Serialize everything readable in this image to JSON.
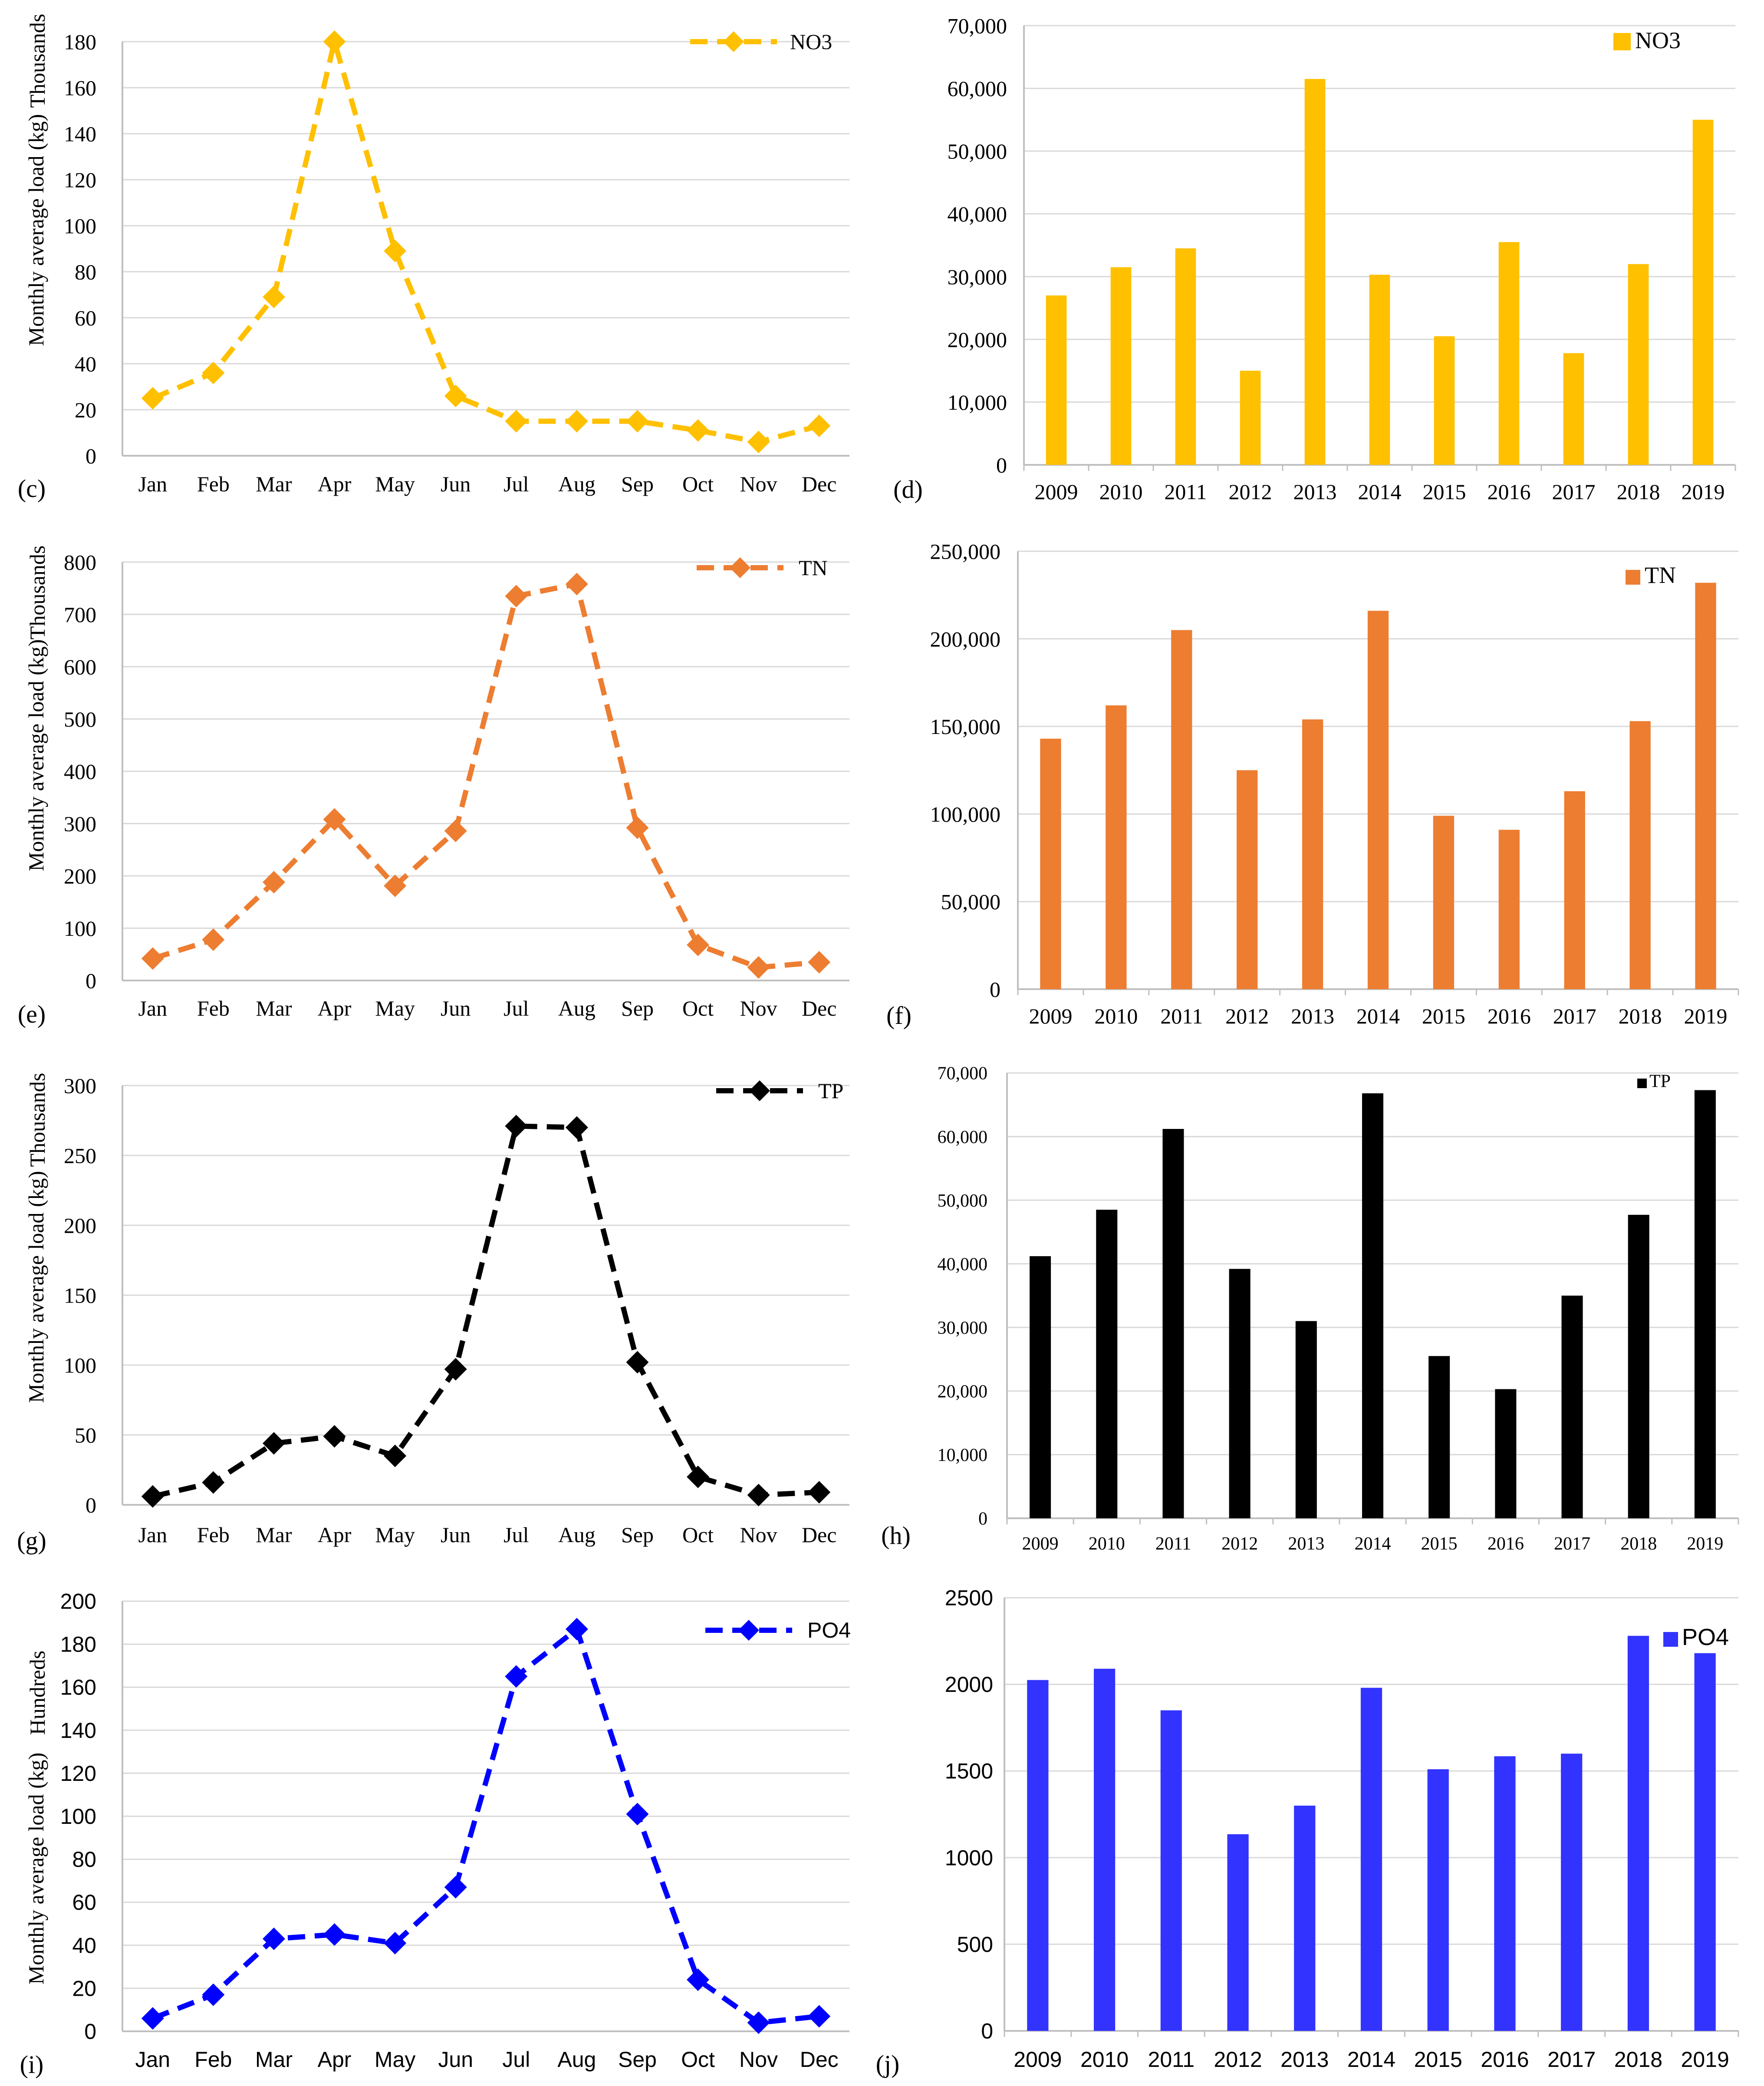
{
  "chart_data": [
    {
      "id": "c",
      "panel_label": "(c)",
      "type": "line",
      "categories": [
        "Jan",
        "Feb",
        "Mar",
        "Apr",
        "May",
        "Jun",
        "Jul",
        "Aug",
        "Sep",
        "Oct",
        "Nov",
        "Dec"
      ],
      "values": [
        25,
        36,
        69,
        180,
        89,
        26,
        15,
        15,
        15,
        11,
        6,
        13
      ],
      "series_name": "NO3",
      "color": "#FFC000",
      "ylabel": "Monthly average load (kg)",
      "unit_label": "Thousands",
      "ylim": [
        0,
        180
      ],
      "yticks": [
        0,
        20,
        40,
        60,
        80,
        100,
        120,
        140,
        160,
        180
      ],
      "ytick_labels": [
        "0",
        "20",
        "40",
        "60",
        "80",
        "100",
        "120",
        "140",
        "160",
        "180"
      ],
      "legend_position": "top-right"
    },
    {
      "id": "d",
      "panel_label": "(d)",
      "type": "bar",
      "categories": [
        "2009",
        "2010",
        "2011",
        "2012",
        "2013",
        "2014",
        "2015",
        "2016",
        "2017",
        "2018",
        "2019"
      ],
      "values": [
        27000,
        31500,
        34500,
        15000,
        61500,
        30300,
        20500,
        35500,
        17800,
        32000,
        55000
      ],
      "series_name": "NO3",
      "color": "#FFC000",
      "ylim": [
        0,
        70000
      ],
      "yticks": [
        0,
        10000,
        20000,
        30000,
        40000,
        50000,
        60000,
        70000
      ],
      "ytick_labels": [
        "0",
        "10,000",
        "20,000",
        "30,000",
        "40,000",
        "50,000",
        "60,000",
        "70,000"
      ],
      "legend_position": "top-right"
    },
    {
      "id": "e",
      "panel_label": "(e)",
      "type": "line",
      "categories": [
        "Jan",
        "Feb",
        "Mar",
        "Apr",
        "May",
        "Jun",
        "Jul",
        "Aug",
        "Sep",
        "Oct",
        "Nov",
        "Dec"
      ],
      "values": [
        42,
        78,
        188,
        308,
        181,
        286,
        735,
        758,
        292,
        68,
        25,
        35
      ],
      "series_name": "TN",
      "color": "#ED7D31",
      "ylabel": "Monthly average load (kg)",
      "unit_label": "Thousands",
      "ylim": [
        0,
        800
      ],
      "yticks": [
        0,
        100,
        200,
        300,
        400,
        500,
        600,
        700,
        800
      ],
      "ytick_labels": [
        "0",
        "100",
        "200",
        "300",
        "400",
        "500",
        "600",
        "700",
        "800"
      ],
      "legend_position": "top-right"
    },
    {
      "id": "f",
      "panel_label": "(f)",
      "type": "bar",
      "categories": [
        "2009",
        "2010",
        "2011",
        "2012",
        "2013",
        "2014",
        "2015",
        "2016",
        "2017",
        "2018",
        "2019"
      ],
      "values": [
        143000,
        162000,
        205000,
        125000,
        154000,
        216000,
        99000,
        91000,
        113000,
        153000,
        232000
      ],
      "series_name": "TN",
      "color": "#ED7D31",
      "ylim": [
        0,
        250000
      ],
      "yticks": [
        0,
        50000,
        100000,
        150000,
        200000,
        250000
      ],
      "ytick_labels": [
        "0",
        "50,000",
        "100,000",
        "150,000",
        "200,000",
        "250,000"
      ],
      "legend_position": "top-right"
    },
    {
      "id": "g",
      "panel_label": "(g)",
      "type": "line",
      "categories": [
        "Jan",
        "Feb",
        "Mar",
        "Apr",
        "May",
        "Jun",
        "Jul",
        "Aug",
        "Sep",
        "Oct",
        "Nov",
        "Dec"
      ],
      "values": [
        6,
        16,
        44,
        49,
        35,
        97,
        271,
        270,
        102,
        20,
        7,
        9
      ],
      "series_name": "TP",
      "color": "#000000",
      "ylabel": "Monthly average load (kg)",
      "unit_label": "Thousands",
      "ylim": [
        0,
        300
      ],
      "yticks": [
        0,
        50,
        100,
        150,
        200,
        250,
        300
      ],
      "ytick_labels": [
        "0",
        "50",
        "100",
        "150",
        "200",
        "250",
        "300"
      ],
      "legend_position": "top-right"
    },
    {
      "id": "h",
      "panel_label": "(h)",
      "type": "bar",
      "categories": [
        "2009",
        "2010",
        "2011",
        "2012",
        "2013",
        "2014",
        "2015",
        "2016",
        "2017",
        "2018",
        "2019"
      ],
      "values": [
        41200,
        48500,
        61200,
        39200,
        31000,
        66800,
        25500,
        20300,
        35000,
        47700,
        67300
      ],
      "series_name": "TP",
      "color": "#000000",
      "ylim": [
        0,
        70000
      ],
      "yticks": [
        0,
        10000,
        20000,
        30000,
        40000,
        50000,
        60000,
        70000
      ],
      "ytick_labels": [
        "0",
        "10,000",
        "20,000",
        "30,000",
        "40,000",
        "50,000",
        "60,000",
        "70,000"
      ],
      "legend_position": "top-right"
    },
    {
      "id": "i",
      "panel_label": "(i)",
      "type": "line",
      "categories": [
        "Jan",
        "Feb",
        "Mar",
        "Apr",
        "May",
        "Jun",
        "Jul",
        "Aug",
        "Sep",
        "Oct",
        "Nov",
        "Dec"
      ],
      "values": [
        6,
        17,
        43,
        45,
        41,
        67,
        165,
        187,
        101,
        24,
        4,
        7
      ],
      "series_name": "PO4",
      "color": "#0000FF",
      "ylabel": "Monthly average load (kg)",
      "unit_label": "Hundreds",
      "ylim": [
        0,
        200
      ],
      "yticks": [
        0,
        20,
        40,
        60,
        80,
        100,
        120,
        140,
        160,
        180,
        200
      ],
      "ytick_labels": [
        "0",
        "20",
        "40",
        "60",
        "80",
        "100",
        "120",
        "140",
        "160",
        "180",
        "200"
      ],
      "legend_position": "top-right"
    },
    {
      "id": "j",
      "panel_label": "(j)",
      "type": "bar",
      "categories": [
        "2009",
        "2010",
        "2011",
        "2012",
        "2013",
        "2014",
        "2015",
        "2016",
        "2017",
        "2018",
        "2019"
      ],
      "values": [
        2025,
        2090,
        1850,
        1135,
        1300,
        1980,
        1510,
        1585,
        1600,
        2280,
        2180
      ],
      "series_name": "PO4",
      "color": "#3333FF",
      "ylim": [
        0,
        2500
      ],
      "yticks": [
        0,
        500,
        1000,
        1500,
        2000,
        2500
      ],
      "ytick_labels": [
        "0",
        "500",
        "1000",
        "1500",
        "2000",
        "2500"
      ],
      "legend_position": "top-right"
    }
  ]
}
